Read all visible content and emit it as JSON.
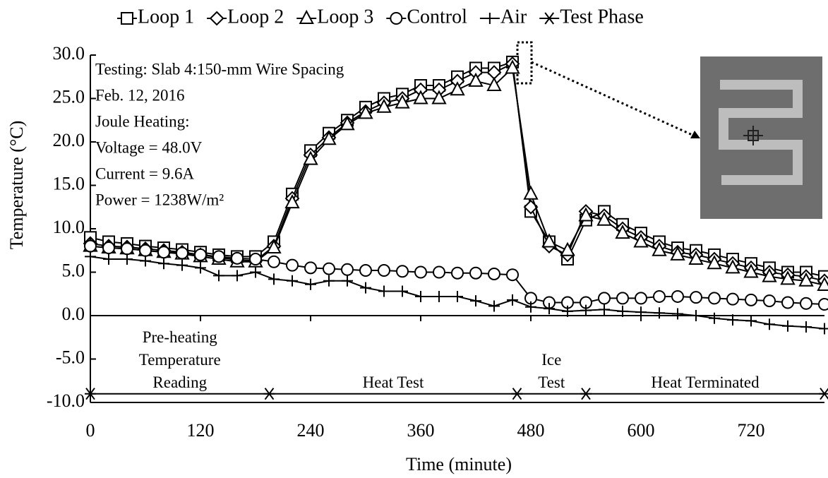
{
  "chart_data": {
    "type": "line",
    "y_label": "Temperature (°C)",
    "x_label": "Time (minute)",
    "xlim": [
      0,
      800
    ],
    "ylim": [
      -10,
      30
    ],
    "xticks": [
      0,
      120,
      240,
      360,
      480,
      600,
      720
    ],
    "yticks": [
      {
        "value": 30,
        "label": "30.0"
      },
      {
        "value": 25,
        "label": "25.0"
      },
      {
        "value": 20,
        "label": "20.0"
      },
      {
        "value": 15,
        "label": "15.0"
      },
      {
        "value": 10,
        "label": "10.0"
      },
      {
        "value": 5,
        "label": "5.0"
      },
      {
        "value": 0,
        "label": "0.0"
      },
      {
        "value": -5,
        "label": "-5.0"
      },
      {
        "value": -10,
        "label": "-10.0"
      }
    ],
    "annotations": [
      "Testing: Slab 4:150-mm Wire Spacing",
      "Feb. 12, 2016",
      "Joule Heating:",
      "Voltage = 48.0V",
      "Current = 9.6A",
      "Power = 1238W/m²"
    ],
    "phases": [
      [
        "Pre-heating",
        "Temperature",
        "Reading"
      ],
      [
        "Heat Test"
      ],
      [
        "Ice",
        "Test"
      ],
      [
        "Heat Terminated"
      ]
    ],
    "x": [
      0,
      20,
      40,
      60,
      80,
      100,
      120,
      140,
      160,
      180,
      200,
      220,
      240,
      260,
      280,
      300,
      320,
      340,
      360,
      380,
      400,
      420,
      440,
      460,
      480,
      500,
      520,
      540,
      560,
      580,
      600,
      620,
      640,
      660,
      680,
      700,
      720,
      740,
      760,
      780,
      800
    ],
    "series": [
      {
        "name": "Loop 1",
        "marker": "square",
        "color": "#000000",
        "values": [
          9.0,
          8.5,
          8.3,
          8.0,
          7.8,
          7.6,
          7.3,
          7.0,
          6.8,
          6.8,
          8.5,
          14.0,
          19.0,
          21.0,
          22.5,
          24.0,
          25.0,
          25.5,
          26.5,
          26.5,
          27.5,
          28.5,
          28.5,
          29.2,
          12.0,
          8.5,
          6.5,
          11.0,
          12.0,
          10.5,
          9.5,
          8.5,
          7.8,
          7.5,
          7.0,
          6.5,
          6.0,
          5.5,
          5.0,
          5.0,
          4.5
        ]
      },
      {
        "name": "Loop 2",
        "marker": "diamond",
        "color": "#000000",
        "values": [
          8.3,
          8.0,
          7.9,
          7.7,
          7.5,
          7.3,
          7.0,
          6.7,
          6.4,
          6.3,
          8.0,
          13.5,
          18.5,
          20.5,
          22.2,
          23.5,
          24.5,
          25.0,
          26.0,
          26.0,
          27.0,
          28.0,
          28.0,
          29.0,
          12.5,
          8.0,
          7.0,
          12.0,
          11.5,
          10.0,
          9.0,
          8.0,
          7.3,
          7.0,
          6.5,
          6.0,
          5.5,
          5.0,
          4.7,
          4.5,
          4.0
        ]
      },
      {
        "name": "Loop 3",
        "marker": "triangle",
        "color": "#000000",
        "values": [
          8.0,
          7.8,
          7.7,
          7.5,
          7.3,
          7.1,
          6.8,
          6.5,
          6.2,
          6.2,
          7.8,
          13.0,
          18.0,
          20.3,
          22.0,
          23.3,
          24.0,
          24.5,
          25.0,
          25.0,
          26.0,
          27.0,
          26.5,
          28.5,
          14.0,
          8.5,
          7.5,
          11.5,
          11.0,
          9.5,
          8.5,
          7.5,
          7.0,
          6.5,
          6.0,
          5.5,
          5.0,
          4.5,
          4.2,
          4.0,
          3.5
        ]
      },
      {
        "name": "Control",
        "marker": "circle",
        "color": "#000000",
        "values": [
          8.0,
          7.8,
          7.7,
          7.5,
          7.3,
          7.2,
          7.0,
          6.8,
          6.6,
          6.5,
          6.2,
          5.8,
          5.5,
          5.4,
          5.3,
          5.2,
          5.2,
          5.1,
          5.0,
          5.0,
          4.9,
          4.9,
          4.8,
          4.7,
          2.0,
          1.5,
          1.5,
          1.5,
          2.0,
          2.0,
          2.0,
          2.2,
          2.2,
          2.1,
          2.0,
          1.9,
          1.8,
          1.7,
          1.5,
          1.4,
          1.3
        ]
      },
      {
        "name": "Air",
        "marker": "plus",
        "color": "#000000",
        "values": [
          6.8,
          6.5,
          6.5,
          6.3,
          6.0,
          5.8,
          5.5,
          4.6,
          4.6,
          5.0,
          4.2,
          4.0,
          3.6,
          4.0,
          4.0,
          3.2,
          2.8,
          2.8,
          2.2,
          2.2,
          2.2,
          1.7,
          1.1,
          1.8,
          1.0,
          0.8,
          0.5,
          0.6,
          0.7,
          0.5,
          0.4,
          0.3,
          0.2,
          0.0,
          -0.3,
          -0.5,
          -0.6,
          -1.0,
          -1.2,
          -1.3,
          -1.5
        ]
      },
      {
        "name": "Test Phase",
        "marker": "asterisk",
        "color": "#000000",
        "x": [
          0,
          195,
          465,
          540,
          800
        ],
        "values": [
          -9,
          -9,
          -9,
          -9,
          -9
        ]
      }
    ]
  }
}
